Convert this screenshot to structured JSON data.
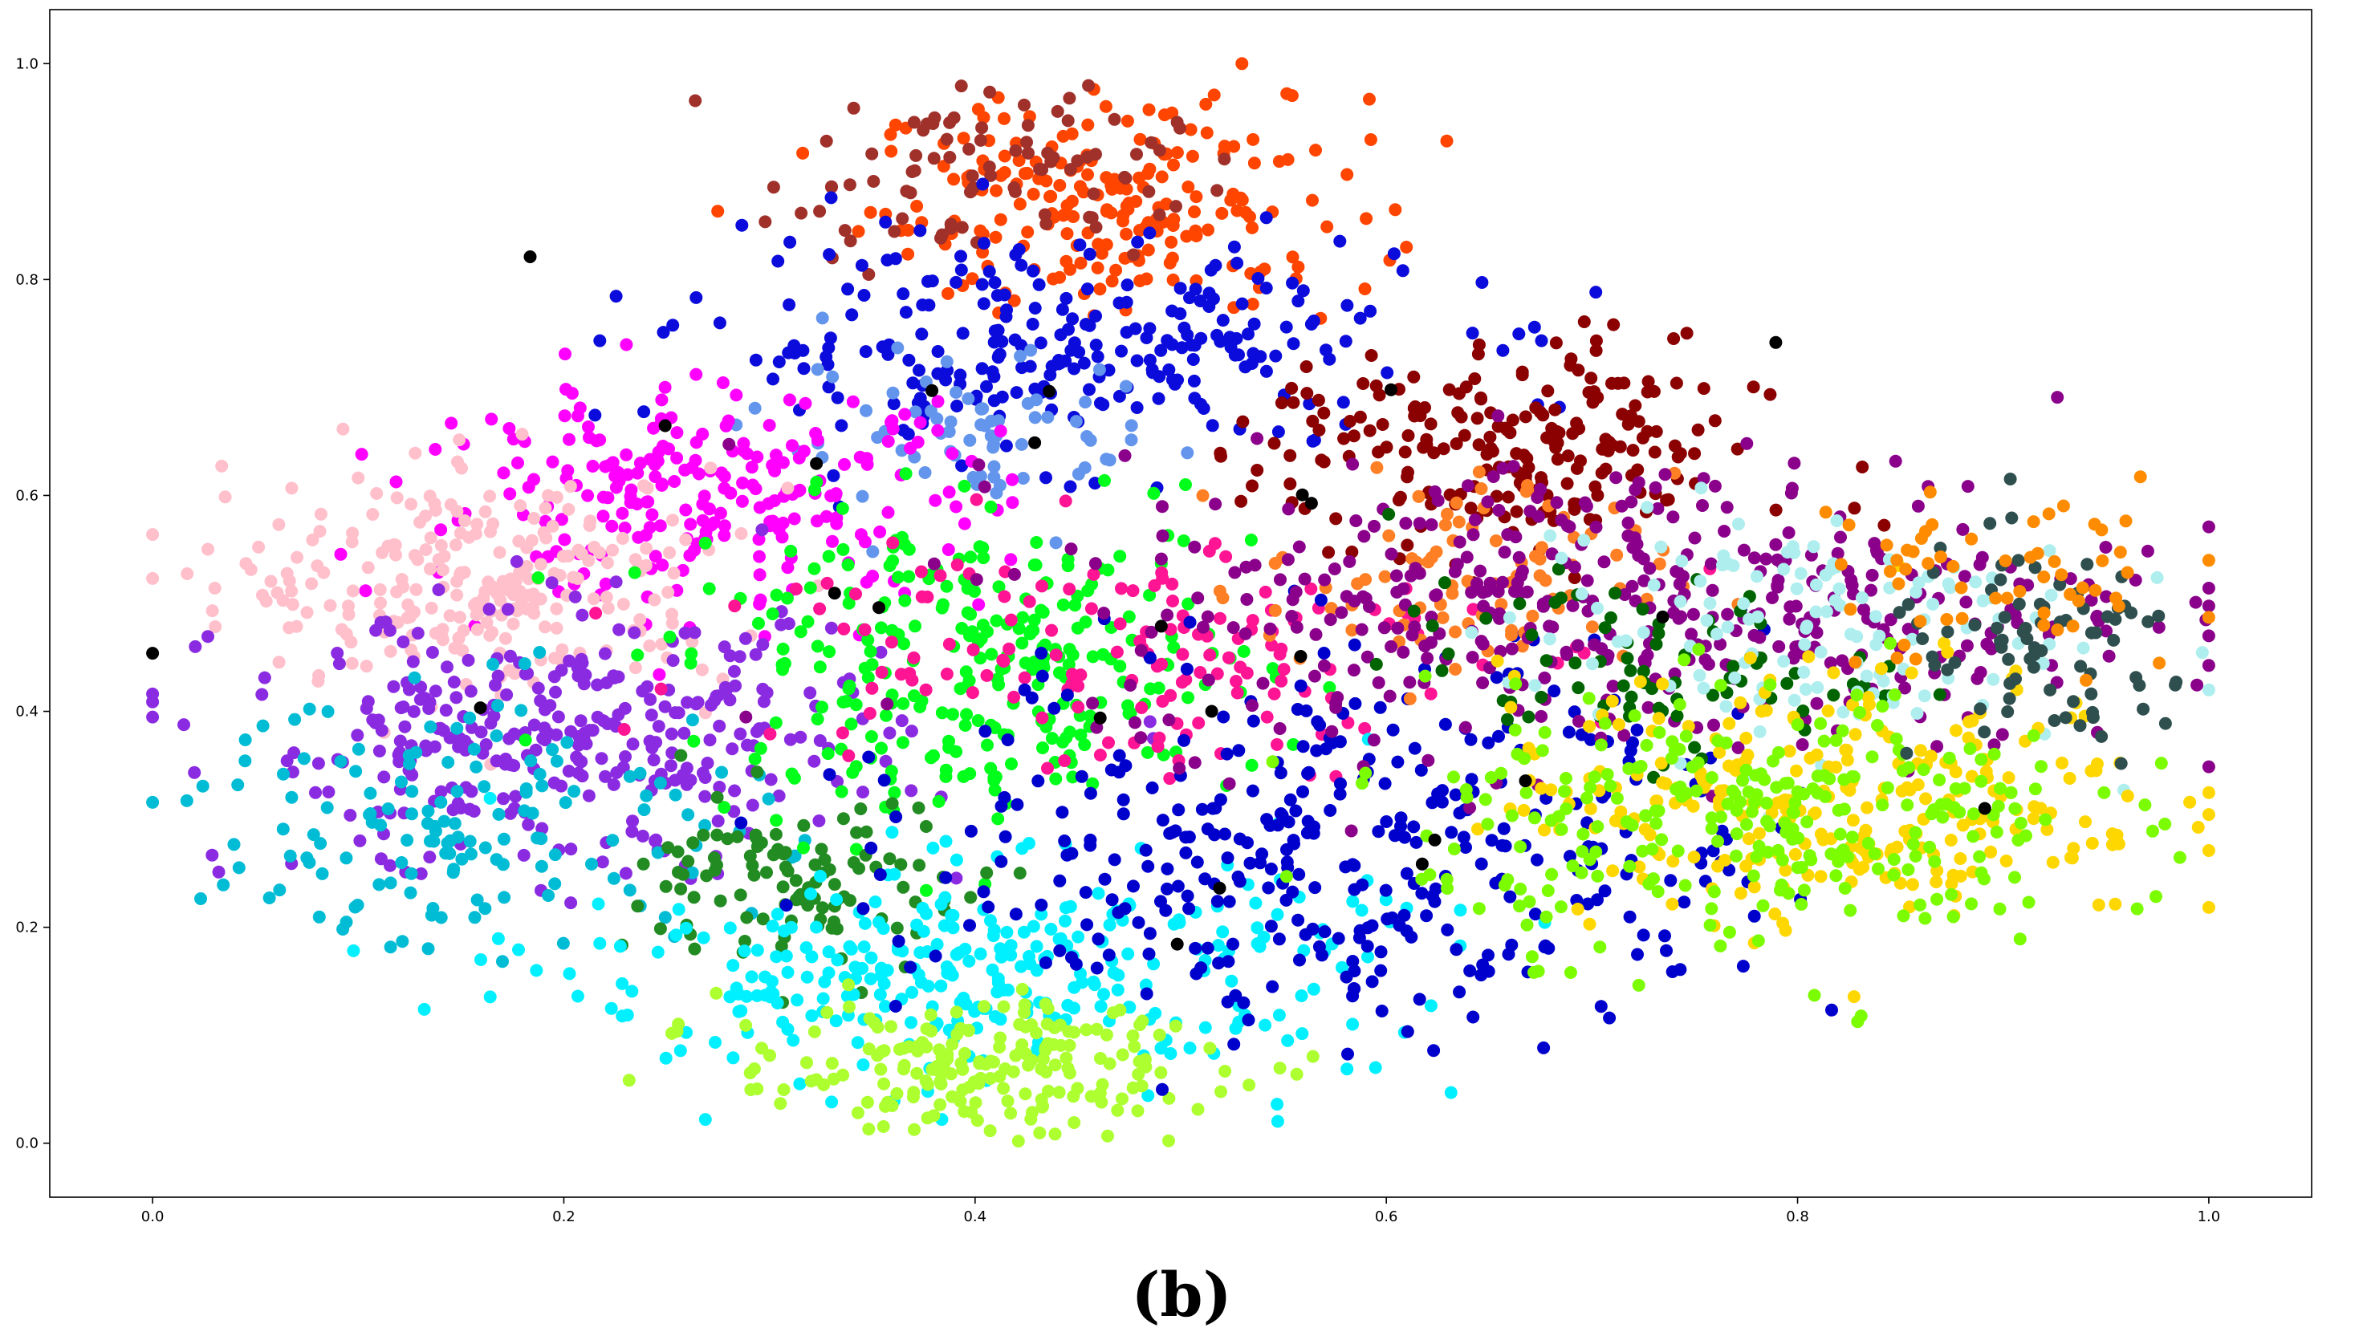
{
  "figure": {
    "caption": "(b)"
  },
  "chart_data": {
    "type": "scatter",
    "title": "",
    "xlabel": "",
    "ylabel": "",
    "xlim": [
      -0.05,
      1.05
    ],
    "ylim": [
      -0.05,
      1.05
    ],
    "grid": false,
    "legend": "none",
    "x_ticks": [
      "0.0",
      "0.2",
      "0.4",
      "0.6",
      "0.8",
      "1.0"
    ],
    "y_ticks": [
      "0.0",
      "0.2",
      "0.4",
      "0.6",
      "0.8",
      "1.0"
    ],
    "clusters": [
      {
        "color": "#ff4500",
        "center": [
          0.47,
          0.87
        ],
        "spread": [
          0.06,
          0.05
        ],
        "count": 220
      },
      {
        "color": "#a0302a",
        "center": [
          0.4,
          0.9
        ],
        "spread": [
          0.05,
          0.04
        ],
        "count": 90
      },
      {
        "color": "#0b0bdc",
        "center": [
          0.44,
          0.74
        ],
        "spread": [
          0.09,
          0.05
        ],
        "count": 260
      },
      {
        "color": "#6495ed",
        "center": [
          0.4,
          0.65
        ],
        "spread": [
          0.05,
          0.04
        ],
        "count": 70
      },
      {
        "color": "#ff00ff",
        "center": [
          0.27,
          0.6
        ],
        "spread": [
          0.07,
          0.05
        ],
        "count": 240
      },
      {
        "color": "#ffc0cb",
        "center": [
          0.16,
          0.52
        ],
        "spread": [
          0.06,
          0.05
        ],
        "count": 260
      },
      {
        "color": "#8a2be2",
        "center": [
          0.2,
          0.37
        ],
        "spread": [
          0.08,
          0.06
        ],
        "count": 330
      },
      {
        "color": "#00bcd4",
        "center": [
          0.16,
          0.3
        ],
        "spread": [
          0.07,
          0.06
        ],
        "count": 150
      },
      {
        "color": "#00ff1a",
        "center": [
          0.4,
          0.44
        ],
        "spread": [
          0.07,
          0.07
        ],
        "count": 280
      },
      {
        "color": "#ff1493",
        "center": [
          0.46,
          0.46
        ],
        "spread": [
          0.09,
          0.06
        ],
        "count": 150
      },
      {
        "color": "#228b22",
        "center": [
          0.32,
          0.24
        ],
        "spread": [
          0.04,
          0.04
        ],
        "count": 110
      },
      {
        "color": "#00f0ff",
        "center": [
          0.4,
          0.16
        ],
        "spread": [
          0.1,
          0.05
        ],
        "count": 320
      },
      {
        "color": "#adff2f",
        "center": [
          0.4,
          0.07
        ],
        "spread": [
          0.06,
          0.03
        ],
        "count": 200
      },
      {
        "color": "#0000cd",
        "center": [
          0.58,
          0.28
        ],
        "spread": [
          0.1,
          0.09
        ],
        "count": 370
      },
      {
        "color": "#8b0000",
        "center": [
          0.66,
          0.64
        ],
        "spread": [
          0.06,
          0.05
        ],
        "count": 220
      },
      {
        "color": "#ff7f24",
        "center": [
          0.64,
          0.52
        ],
        "spread": [
          0.05,
          0.05
        ],
        "count": 90
      },
      {
        "color": "#8b008b",
        "center": [
          0.72,
          0.5
        ],
        "spread": [
          0.13,
          0.07
        ],
        "count": 430
      },
      {
        "color": "#006400",
        "center": [
          0.72,
          0.44
        ],
        "spread": [
          0.06,
          0.04
        ],
        "count": 80
      },
      {
        "color": "#afeeee",
        "center": [
          0.8,
          0.48
        ],
        "spread": [
          0.07,
          0.06
        ],
        "count": 130
      },
      {
        "color": "#ffd700",
        "center": [
          0.82,
          0.32
        ],
        "spread": [
          0.08,
          0.06
        ],
        "count": 280
      },
      {
        "color": "#7cfc00",
        "center": [
          0.78,
          0.3
        ],
        "spread": [
          0.08,
          0.06
        ],
        "count": 280
      },
      {
        "color": "#2f4f4f",
        "center": [
          0.92,
          0.45
        ],
        "spread": [
          0.04,
          0.05
        ],
        "count": 80
      },
      {
        "color": "#ff8c00",
        "center": [
          0.9,
          0.52
        ],
        "spread": [
          0.05,
          0.05
        ],
        "count": 60
      },
      {
        "color": "#000000",
        "center": [
          0.45,
          0.5
        ],
        "spread": [
          0.25,
          0.15
        ],
        "count": 25
      }
    ]
  }
}
